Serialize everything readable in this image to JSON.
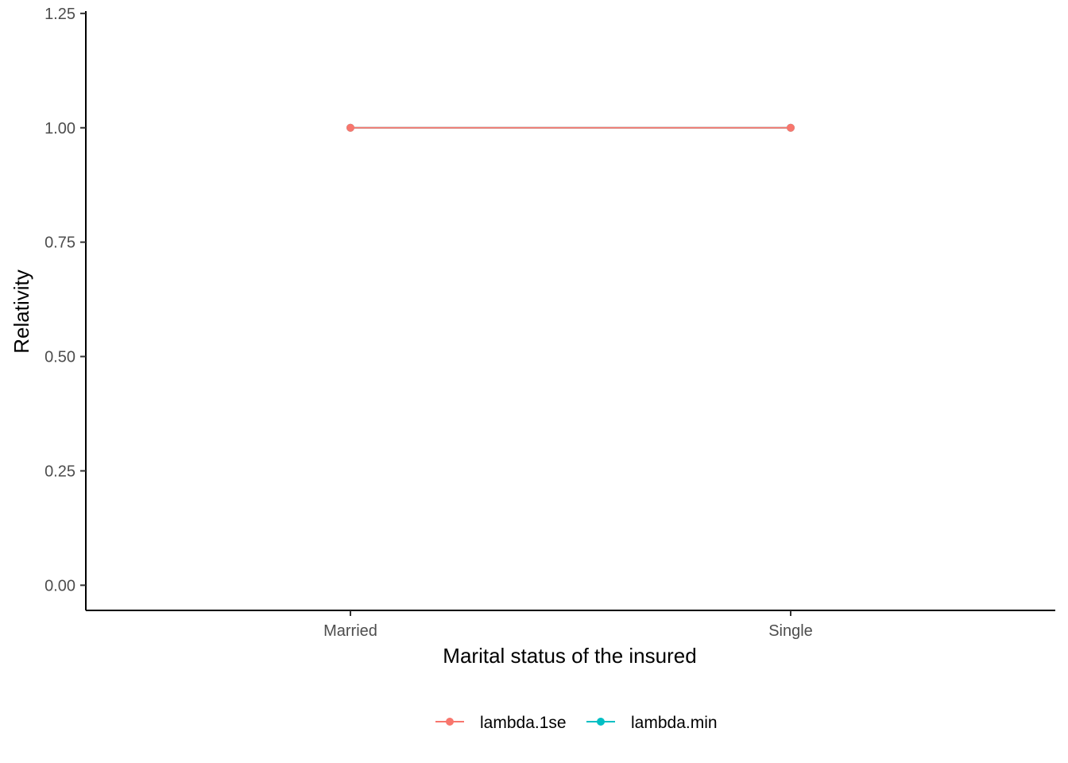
{
  "chart_data": {
    "type": "line",
    "title": "",
    "xlabel": "Marital status of the insured",
    "ylabel": "Relativity",
    "categories": [
      "Married",
      "Single"
    ],
    "ylim": [
      -0.055,
      1.255
    ],
    "yticks": [
      0,
      0.25,
      0.5,
      0.75,
      1,
      1.25
    ],
    "ytick_labels": [
      "0.00",
      "0.25",
      "0.50",
      "0.75",
      "1.00",
      "1.25"
    ],
    "grid": false,
    "legend_position": "bottom",
    "series": [
      {
        "name": "lambda.1se",
        "values": [
          1.0,
          1.0
        ],
        "color": "#F8766D"
      },
      {
        "name": "lambda.min",
        "values": [
          1.0,
          1.0
        ],
        "color": "#00BFC4"
      }
    ]
  }
}
